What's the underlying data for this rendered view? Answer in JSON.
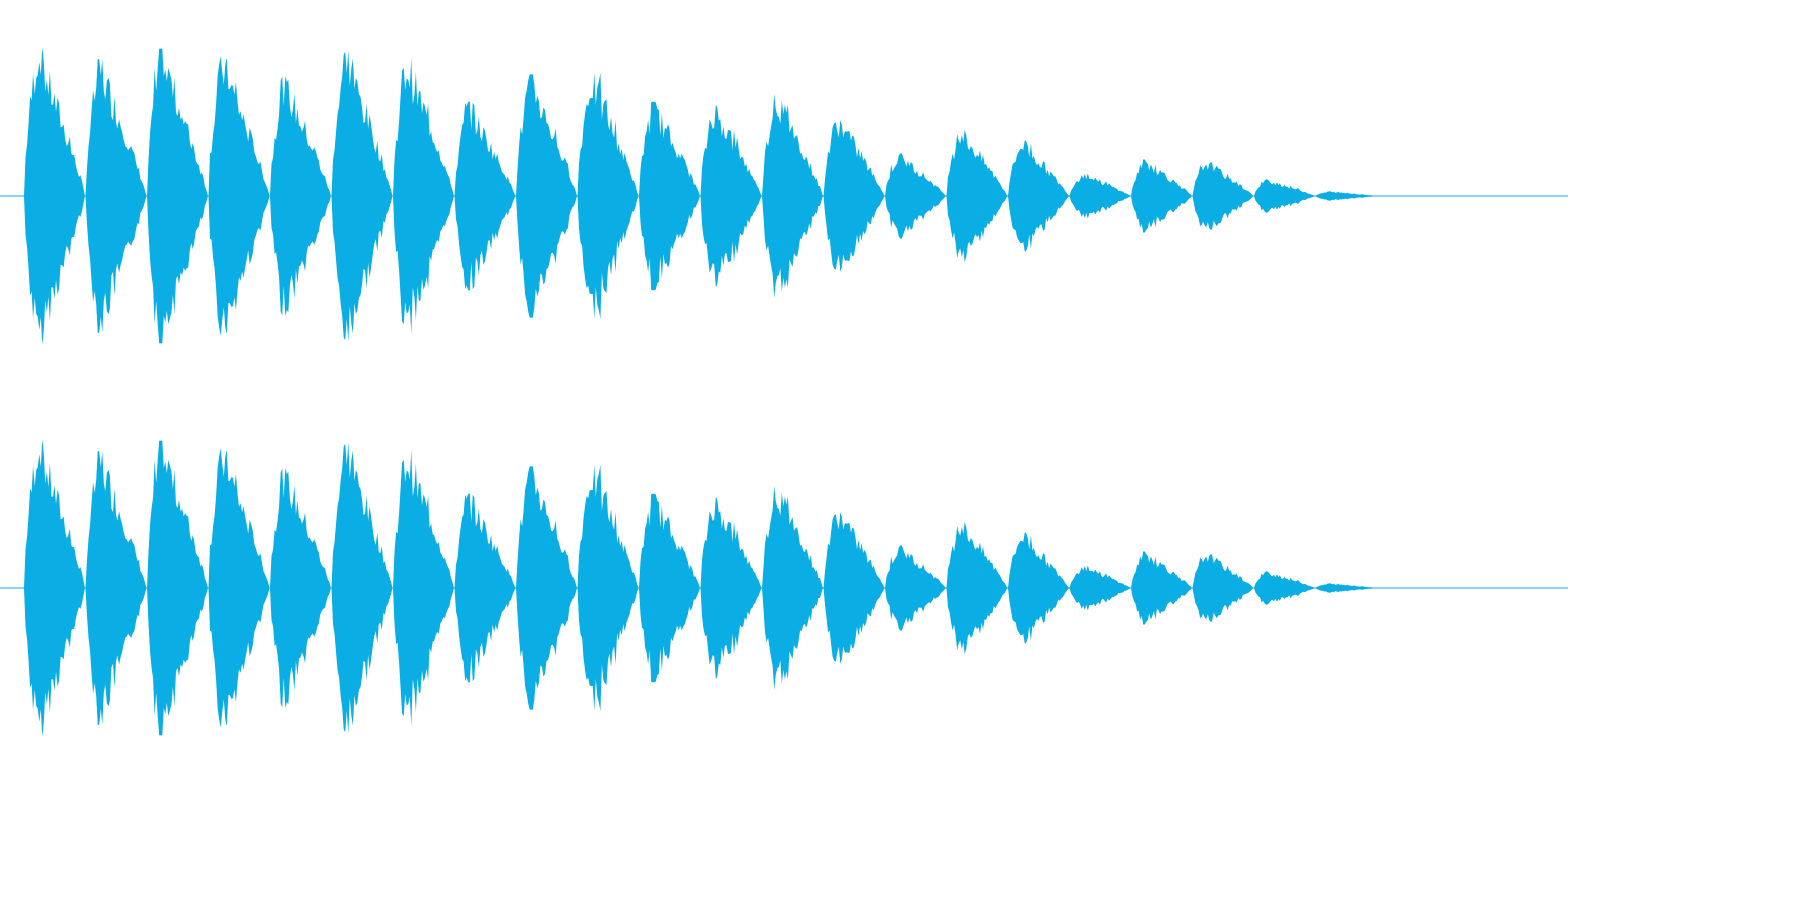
{
  "waveform": {
    "color": "#0aaee4",
    "channels": [
      "left",
      "right"
    ],
    "bursts": [
      {
        "peak": 0.99,
        "trough": 0.99
      },
      {
        "peak": 0.9,
        "trough": 0.9
      },
      {
        "peak": 0.97,
        "trough": 0.97
      },
      {
        "peak": 0.92,
        "trough": 0.92
      },
      {
        "peak": 0.79,
        "trough": 0.79
      },
      {
        "peak": 0.96,
        "trough": 0.96
      },
      {
        "peak": 0.91,
        "trough": 0.91
      },
      {
        "peak": 0.62,
        "trough": 0.62
      },
      {
        "peak": 0.8,
        "trough": 0.8
      },
      {
        "peak": 0.81,
        "trough": 0.81
      },
      {
        "peak": 0.62,
        "trough": 0.62
      },
      {
        "peak": 0.6,
        "trough": 0.6
      },
      {
        "peak": 0.68,
        "trough": 0.68
      },
      {
        "peak": 0.53,
        "trough": 0.53
      },
      {
        "peak": 0.28,
        "trough": 0.28
      },
      {
        "peak": 0.45,
        "trough": 0.45
      },
      {
        "peak": 0.37,
        "trough": 0.37
      },
      {
        "peak": 0.15,
        "trough": 0.15
      },
      {
        "peak": 0.24,
        "trough": 0.24
      },
      {
        "peak": 0.23,
        "trough": 0.23
      },
      {
        "peak": 0.11,
        "trough": 0.11
      },
      {
        "peak": 0.03,
        "trough": 0.03
      }
    ]
  }
}
